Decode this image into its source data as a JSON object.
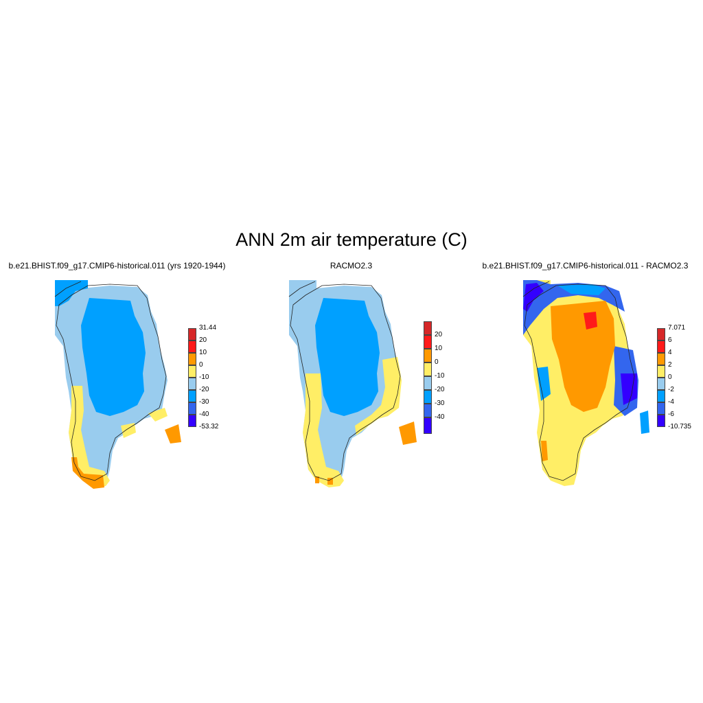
{
  "figure": {
    "title": "ANN 2m air temperature (C)"
  },
  "panels": [
    {
      "title": "b.e21.BHIST.f09_g17.CMIP6-historical.011 (yrs 1920-1944)",
      "kind": "model",
      "colorbar": {
        "labels": [
          "31.44",
          "20",
          "10",
          "0",
          "-10",
          "-20",
          "-30",
          "-40",
          "-53.32"
        ],
        "end_labels": true,
        "colors": [
          "#d62728",
          "#ff1a1a",
          "#ff9900",
          "#ffee66",
          "#99ccee",
          "#00a0ff",
          "#3366ee",
          "#3300ff"
        ]
      }
    },
    {
      "title": "RACMO2.3",
      "kind": "obs",
      "colorbar": {
        "labels": [
          "20",
          "10",
          "0",
          "-10",
          "-20",
          "-30",
          "-40"
        ],
        "end_labels": false,
        "colors": [
          "#d62728",
          "#ff1a1a",
          "#ff9900",
          "#ffee66",
          "#99ccee",
          "#00a0ff",
          "#3366ee",
          "#3300ff"
        ]
      }
    },
    {
      "title": "b.e21.BHIST.f09_g17.CMIP6-historical.011 - RACMO2.3",
      "kind": "diff",
      "colorbar": {
        "labels": [
          "7.071",
          "6",
          "4",
          "2",
          "0",
          "-2",
          "-4",
          "-6",
          "-10.735"
        ],
        "end_labels": true,
        "colors": [
          "#d62728",
          "#ff1a1a",
          "#ff9900",
          "#ffee66",
          "#99ccee",
          "#00a0ff",
          "#3366ee",
          "#3300ff"
        ]
      }
    }
  ]
}
